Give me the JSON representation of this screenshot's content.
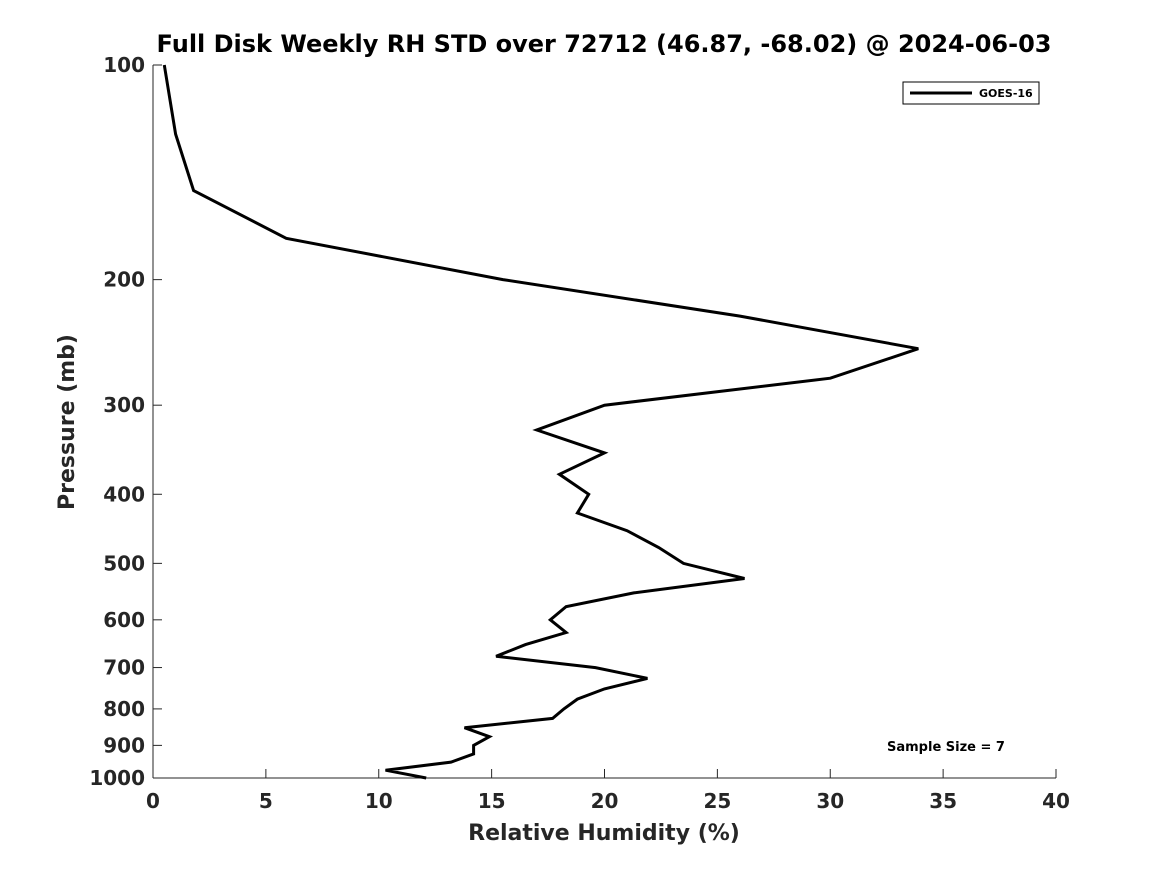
{
  "chart_data": {
    "type": "line",
    "title": "Full Disk Weekly RH STD over 72712 (46.87, -68.02) @ 2024-06-03",
    "xlabel": "Relative Humidity (%)",
    "ylabel": "Pressure (mb)",
    "xlim": [
      0,
      40
    ],
    "ylim": [
      100,
      1000
    ],
    "y_scale": "log",
    "y_reversed": true,
    "xticks": [
      0,
      5,
      10,
      15,
      20,
      25,
      30,
      35,
      40
    ],
    "xtick_labels": [
      "0",
      "5",
      "10",
      "15",
      "20",
      "25",
      "30",
      "35",
      "40"
    ],
    "yticks": [
      100,
      200,
      300,
      400,
      500,
      600,
      700,
      800,
      900,
      1000
    ],
    "ytick_labels": [
      "100",
      "200",
      "300",
      "400",
      "500",
      "600",
      "700",
      "800",
      "900",
      "1000"
    ],
    "grid": false,
    "legend_position": "top-right",
    "series": [
      {
        "name": "GOES-16",
        "color": "#000000",
        "points": [
          [
            0.5,
            100
          ],
          [
            1.0,
            125
          ],
          [
            1.8,
            150
          ],
          [
            5.9,
            175
          ],
          [
            15.5,
            200
          ],
          [
            26.0,
            225
          ],
          [
            33.9,
            250
          ],
          [
            30.0,
            275
          ],
          [
            20.0,
            300
          ],
          [
            17.0,
            325
          ],
          [
            20.0,
            350
          ],
          [
            18.0,
            375
          ],
          [
            19.3,
            400
          ],
          [
            18.8,
            425
          ],
          [
            21.0,
            450
          ],
          [
            22.4,
            475
          ],
          [
            23.5,
            500
          ],
          [
            26.2,
            525
          ],
          [
            21.3,
            550
          ],
          [
            18.3,
            575
          ],
          [
            17.6,
            600
          ],
          [
            18.3,
            625
          ],
          [
            16.5,
            650
          ],
          [
            15.2,
            675
          ],
          [
            19.6,
            700
          ],
          [
            21.9,
            725
          ],
          [
            20.0,
            750
          ],
          [
            18.8,
            775
          ],
          [
            18.2,
            800
          ],
          [
            17.7,
            825
          ],
          [
            13.8,
            850
          ],
          [
            14.9,
            875
          ],
          [
            14.2,
            900
          ],
          [
            14.2,
            925
          ],
          [
            13.2,
            950
          ],
          [
            10.3,
            975
          ],
          [
            12.1,
            1000
          ]
        ]
      }
    ],
    "annotations": [
      "Sample Size = 7"
    ]
  }
}
